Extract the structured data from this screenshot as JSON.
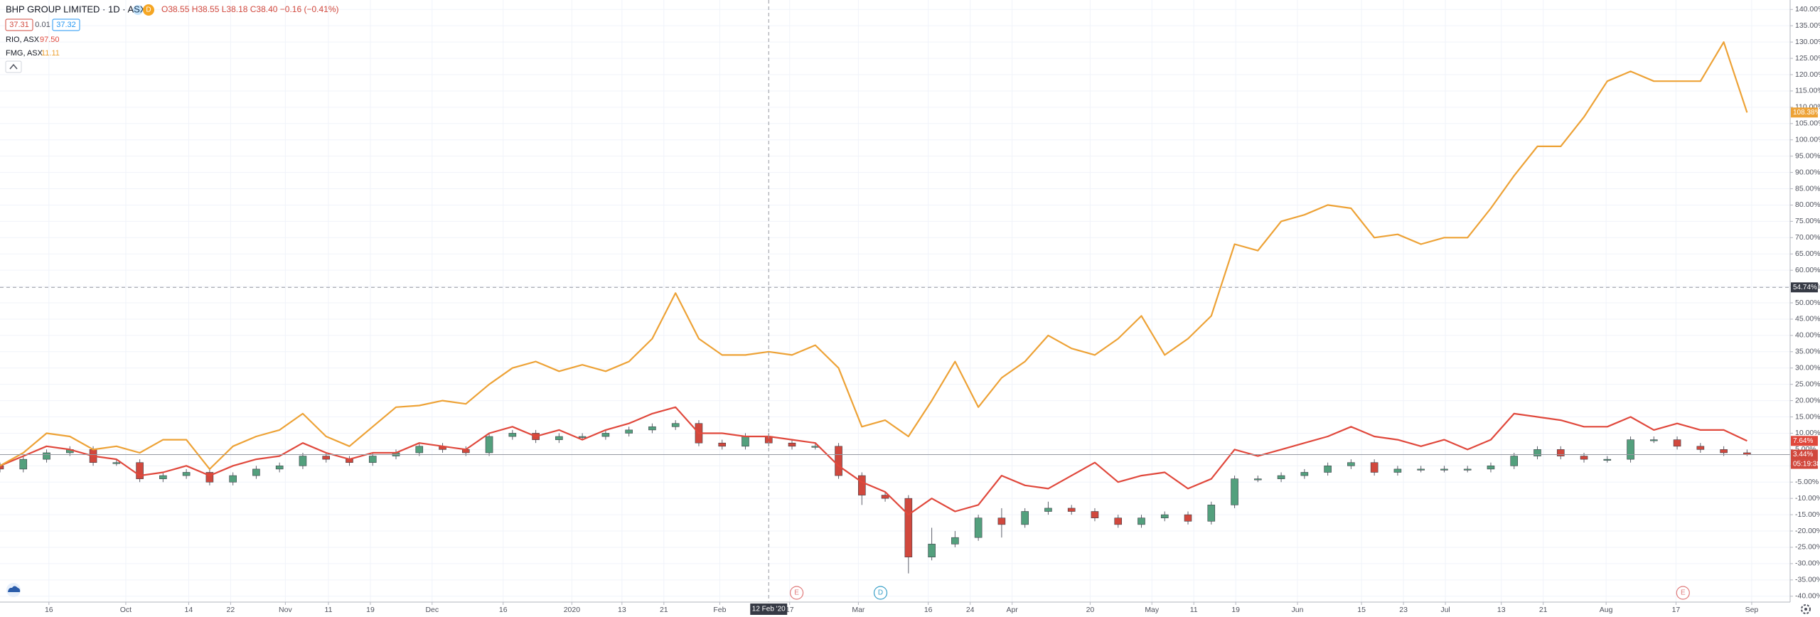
{
  "chart_data": {
    "type": "candlestick-compare",
    "header": {
      "symbol": "BHP GROUP LIMITED · 1D · ASX",
      "badge": "D",
      "ohlc": "O38.55 H38.55 L38.18 C38.40 −0.16 (−0.41%)",
      "bid": "37.31",
      "spread": "0.01",
      "ask": "37.32"
    },
    "xlim": [
      0,
      76.85
    ],
    "xticks": [
      {
        "value": 2.1,
        "label": "16"
      },
      {
        "value": 5.4,
        "label": "Oct"
      },
      {
        "value": 8.1,
        "label": "14"
      },
      {
        "value": 9.9,
        "label": "22"
      },
      {
        "value": 12.25,
        "label": "Nov"
      },
      {
        "value": 14.1,
        "label": "11"
      },
      {
        "value": 15.9,
        "label": "19"
      },
      {
        "value": 18.55,
        "label": "Dec"
      },
      {
        "value": 21.6,
        "label": "16"
      },
      {
        "value": 24.55,
        "label": "2020"
      },
      {
        "value": 26.7,
        "label": "13"
      },
      {
        "value": 28.5,
        "label": "21"
      },
      {
        "value": 30.9,
        "label": "Feb"
      },
      {
        "value": 33.9,
        "label": "17"
      },
      {
        "value": 36.85,
        "label": "Mar"
      },
      {
        "value": 39.85,
        "label": "16"
      },
      {
        "value": 41.65,
        "label": "24"
      },
      {
        "value": 43.45,
        "label": "Apr"
      },
      {
        "value": 46.8,
        "label": "20"
      },
      {
        "value": 49.45,
        "label": "May"
      },
      {
        "value": 51.25,
        "label": "11"
      },
      {
        "value": 53.05,
        "label": "19"
      },
      {
        "value": 55.7,
        "label": "Jun"
      },
      {
        "value": 58.45,
        "label": "15"
      },
      {
        "value": 60.25,
        "label": "23"
      },
      {
        "value": 62.05,
        "label": "Jul"
      },
      {
        "value": 64.45,
        "label": "13"
      },
      {
        "value": 66.25,
        "label": "21"
      },
      {
        "value": 68.95,
        "label": "Aug"
      },
      {
        "value": 71.95,
        "label": "17"
      },
      {
        "value": 75.2,
        "label": "Sep"
      }
    ],
    "ylim": [
      -41.8,
      142.9
    ],
    "yticks": [
      {
        "value": 140,
        "label": "140.00%"
      },
      {
        "value": 135,
        "label": "135.00%"
      },
      {
        "value": 130,
        "label": "130.00%"
      },
      {
        "value": 125,
        "label": "125.00%"
      },
      {
        "value": 120,
        "label": "120.00%"
      },
      {
        "value": 115,
        "label": "115.00%"
      },
      {
        "value": 110,
        "label": "110.00%"
      },
      {
        "value": 105,
        "label": "105.00%"
      },
      {
        "value": 100,
        "label": "100.00%"
      },
      {
        "value": 95,
        "label": "95.00%"
      },
      {
        "value": 90,
        "label": "90.00%"
      },
      {
        "value": 85,
        "label": "85.00%"
      },
      {
        "value": 80,
        "label": "80.00%"
      },
      {
        "value": 75,
        "label": "75.00%"
      },
      {
        "value": 70,
        "label": "70.00%"
      },
      {
        "value": 65,
        "label": "65.00%"
      },
      {
        "value": 60,
        "label": "60.00%"
      },
      {
        "value": 55,
        "label": "55.00%"
      },
      {
        "value": 50,
        "label": "50.00%"
      },
      {
        "value": 45,
        "label": "45.00%"
      },
      {
        "value": 40,
        "label": "40.00%"
      },
      {
        "value": 35,
        "label": "35.00%"
      },
      {
        "value": 30,
        "label": "30.00%"
      },
      {
        "value": 25,
        "label": "25.00%"
      },
      {
        "value": 20,
        "label": "20.00%"
      },
      {
        "value": 15,
        "label": "15.00%"
      },
      {
        "value": 10,
        "label": "10.00%"
      },
      {
        "value": 5,
        "label": "5.00%"
      },
      {
        "value": 0,
        "label": "0.00%"
      },
      {
        "value": -5,
        "label": "-5.00%"
      },
      {
        "value": -10,
        "label": "-10.00%"
      },
      {
        "value": -15,
        "label": "-15.00%"
      },
      {
        "value": -20,
        "label": "-20.00%"
      },
      {
        "value": -25,
        "label": "-25.00%"
      },
      {
        "value": -30,
        "label": "-30.00%"
      },
      {
        "value": -35,
        "label": "-35.00%"
      },
      {
        "value": -40,
        "label": "-40.00%"
      }
    ],
    "grid": true,
    "series": [
      {
        "name": "RIO, ASX",
        "price_label": "97.50",
        "color": "#e0483c",
        "kind": "line",
        "last_label": "7.64%",
        "values": [
          0,
          3,
          6,
          5,
          3,
          2,
          -3,
          -2,
          0,
          -3,
          0,
          2,
          3,
          7,
          4,
          2,
          4,
          4,
          7,
          6,
          5,
          10,
          12,
          9,
          11,
          8,
          11,
          13,
          16,
          18,
          10,
          10,
          9,
          9,
          8,
          7,
          0,
          -5,
          -8,
          -15,
          -10,
          -14,
          -12,
          -3,
          -6,
          -7,
          -3,
          1,
          -5,
          -3,
          -2,
          -7,
          -4,
          5,
          3,
          5,
          7,
          9,
          12,
          9,
          8,
          6,
          8,
          5,
          8,
          16,
          15,
          14,
          12,
          12,
          15,
          11,
          13,
          11,
          11,
          7.64
        ]
      },
      {
        "name": "FMG, ASX",
        "price_label": "11.11",
        "color": "#eda236",
        "kind": "line",
        "last_label": "108.38%",
        "values": [
          0,
          4,
          10,
          9,
          5,
          6,
          4,
          8,
          8,
          -1,
          6,
          9,
          11,
          16,
          9,
          6,
          12,
          18,
          18.5,
          20,
          19,
          25,
          30,
          32,
          29,
          31,
          29,
          32,
          39,
          53,
          39,
          34,
          34,
          35,
          34,
          37,
          30,
          12,
          14,
          9,
          20,
          32,
          18,
          27,
          32,
          40,
          36,
          34,
          39,
          46,
          34,
          39,
          46,
          68,
          66,
          75,
          77,
          80,
          79,
          70,
          71,
          68,
          70,
          70,
          79,
          89,
          98,
          98,
          107,
          118,
          121,
          118,
          118,
          118,
          130,
          108.38
        ]
      },
      {
        "name": "BHP GROUP LIMITED",
        "kind": "candles",
        "color": "#d1483d",
        "up_color": "#53a07d",
        "down_color": "#d1483d",
        "last_label": "3.44%",
        "countdown": "05:19:38",
        "open": [
          0,
          -1,
          2,
          4,
          5,
          1,
          1,
          -4,
          -3,
          -2,
          -5,
          -3,
          -1,
          0,
          3,
          2,
          1,
          3,
          4,
          6,
          5,
          4,
          9,
          10,
          8,
          9,
          9,
          10,
          11,
          12,
          13,
          7,
          6,
          9,
          7,
          6,
          6,
          -3,
          -9,
          -10,
          -28,
          -24,
          -22,
          -16,
          -18,
          -14,
          -13,
          -14,
          -16,
          -18,
          -16,
          -15,
          -17,
          -12,
          -4,
          -4,
          -3,
          -2,
          0,
          1,
          -2,
          -1,
          -1,
          -1,
          -1,
          0,
          3,
          5,
          3,
          2,
          2,
          8,
          8,
          6,
          5,
          4
        ],
        "high": [
          1,
          3,
          5,
          6,
          6,
          2,
          2,
          -2,
          -1,
          -1,
          -2,
          0,
          1,
          4,
          4,
          3,
          4,
          5,
          7,
          7,
          6,
          10,
          11,
          11,
          10,
          10,
          11,
          12,
          13,
          14,
          14,
          8,
          10,
          10,
          8,
          7,
          7,
          -2,
          -8,
          -9,
          -19,
          -20,
          -15,
          -13,
          -13,
          -11,
          -12,
          -13,
          -15,
          -15,
          -14,
          -14,
          -11,
          -3,
          -3,
          -2,
          -1,
          1,
          2,
          2,
          0,
          0,
          0,
          0,
          1,
          4,
          6,
          6,
          4,
          3,
          9,
          9,
          9,
          7,
          6,
          5
        ],
        "low": [
          -2,
          -2,
          1,
          3,
          0,
          0,
          -5,
          -5,
          -4,
          -6,
          -6,
          -4,
          -2,
          -1,
          1,
          0,
          0,
          2,
          3,
          4,
          3,
          3,
          8,
          7,
          7,
          8,
          8,
          9,
          10,
          11,
          6,
          5,
          5,
          6,
          5,
          5,
          -4,
          -12,
          -11,
          -33,
          -29,
          -25,
          -23,
          -22,
          -19,
          -15,
          -15,
          -17,
          -19,
          -19,
          -17,
          -18,
          -18,
          -13,
          -5,
          -5,
          -4,
          -3,
          -1,
          -3,
          -3,
          -2,
          -2,
          -2,
          -2,
          -1,
          2,
          2,
          1,
          1,
          1,
          7,
          5,
          4,
          3,
          3
        ],
        "close": [
          -1,
          2,
          4,
          5,
          1,
          1,
          -4,
          -3,
          -2,
          -5,
          -3,
          -1,
          0,
          3,
          2,
          1,
          3,
          4,
          6,
          5,
          4,
          9,
          10,
          8,
          9,
          9,
          10,
          11,
          12,
          13,
          7,
          6,
          9,
          7,
          6,
          6,
          -3,
          -9,
          -10,
          -28,
          -24,
          -22,
          -16,
          -18,
          -14,
          -13,
          -14,
          -16,
          -18,
          -16,
          -15,
          -17,
          -12,
          -4,
          -4,
          -3,
          -2,
          0,
          1,
          -2,
          -1,
          -1,
          -1,
          -1,
          0,
          3,
          5,
          3,
          2,
          2,
          8,
          8,
          6,
          5,
          4,
          3.44
        ]
      }
    ],
    "crosshair": {
      "x": 33,
      "y": 54.74,
      "x_label": "12 Feb '20",
      "y_label": "54.74%"
    },
    "events": [
      {
        "label": "E",
        "x": 34.2,
        "color": "#e07a7a"
      },
      {
        "label": "D",
        "x": 37.8,
        "color": "#3aa0c8"
      },
      {
        "label": "E",
        "x": 72.25,
        "color": "#e07a7a"
      }
    ]
  }
}
